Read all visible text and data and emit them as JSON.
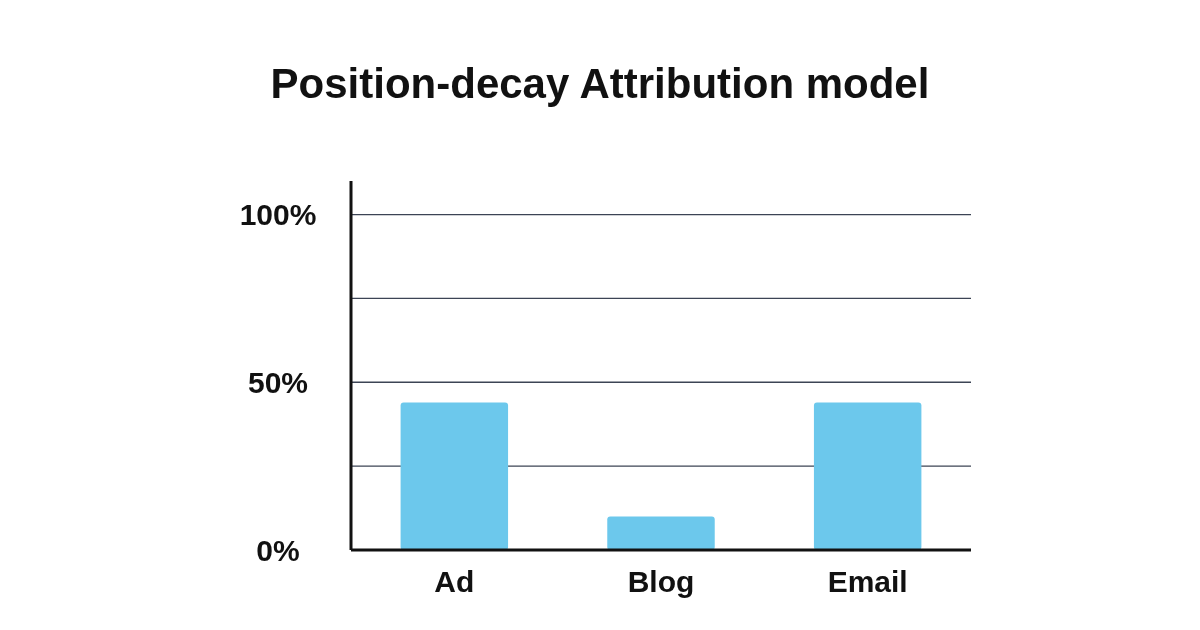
{
  "chart_data": {
    "type": "bar",
    "title": "Position-decay Attribution model",
    "categories": [
      "Ad",
      "Blog",
      "Email"
    ],
    "values": [
      44,
      10,
      44
    ],
    "color": "#6cc8ec",
    "ylim": [
      0,
      110
    ],
    "yticks": [
      {
        "value": 0,
        "label": "0%"
      },
      {
        "value": 25,
        "label": null
      },
      {
        "value": 50,
        "label": "50%"
      },
      {
        "value": 75,
        "label": null
      },
      {
        "value": 100,
        "label": "100%"
      }
    ],
    "grid": "y"
  }
}
